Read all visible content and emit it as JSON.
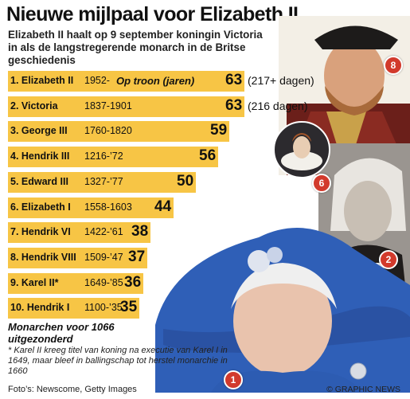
{
  "title": "Nieuwe mijlpaal voor Elizabeth II",
  "subtitle": "Elizabeth II haalt op 9 september koningin Victoria in als de langstregerende monarch in de Britse geschiedenis",
  "axis_label": "Op troon (jaren)",
  "note": "Monarchen voor 1066 uitgezonderd",
  "footnote": "* Karel II kreeg titel van koning na executie van Karel I in 1649, maar bleef in ballingschap tot herstel monarchie  in 1660",
  "credit": "Foto’s: Newscome, Getty Images",
  "copyright": "© GRAPHIC NEWS",
  "photos": [
    {
      "name": "Hendrik VIII portrait",
      "badge": "8"
    },
    {
      "name": "Victoria portrait",
      "badge": "2"
    },
    {
      "name": "Elizabeth I portrait",
      "badge": "6"
    },
    {
      "name": "Elizabeth II portrait",
      "badge": "1"
    }
  ],
  "colors": {
    "bar": "#f7c545",
    "badge": "#d23a2c"
  },
  "chart_data": {
    "type": "bar",
    "orientation": "horizontal",
    "unit": "jaren",
    "categories": [
      "1. Elizabeth II",
      "2. Victoria",
      "3. George III",
      "4. Hendrik III",
      "5. Edward III",
      "6. Elizabeth I",
      "7. Hendrik VI",
      "8. Hendrik VIII",
      "9. Karel II*",
      "10. Hendrik I"
    ],
    "years": [
      "1952-",
      "1837-1901",
      "1760-1820",
      "1216-’72",
      "1327-’77",
      "1558-1603",
      "1422-’61",
      "1509-’47",
      "1649-’85",
      "1100-’35"
    ],
    "values": [
      63,
      63,
      59,
      56,
      50,
      44,
      38,
      37,
      36,
      35
    ],
    "value_labels": [
      "63",
      "63",
      "59",
      "56",
      "50",
      "44",
      "38",
      "37",
      "36",
      "35"
    ],
    "extras": [
      "(217+ dagen)",
      "(216 dagen)",
      "",
      "",
      "",
      "",
      "",
      "",
      "",
      ""
    ]
  }
}
